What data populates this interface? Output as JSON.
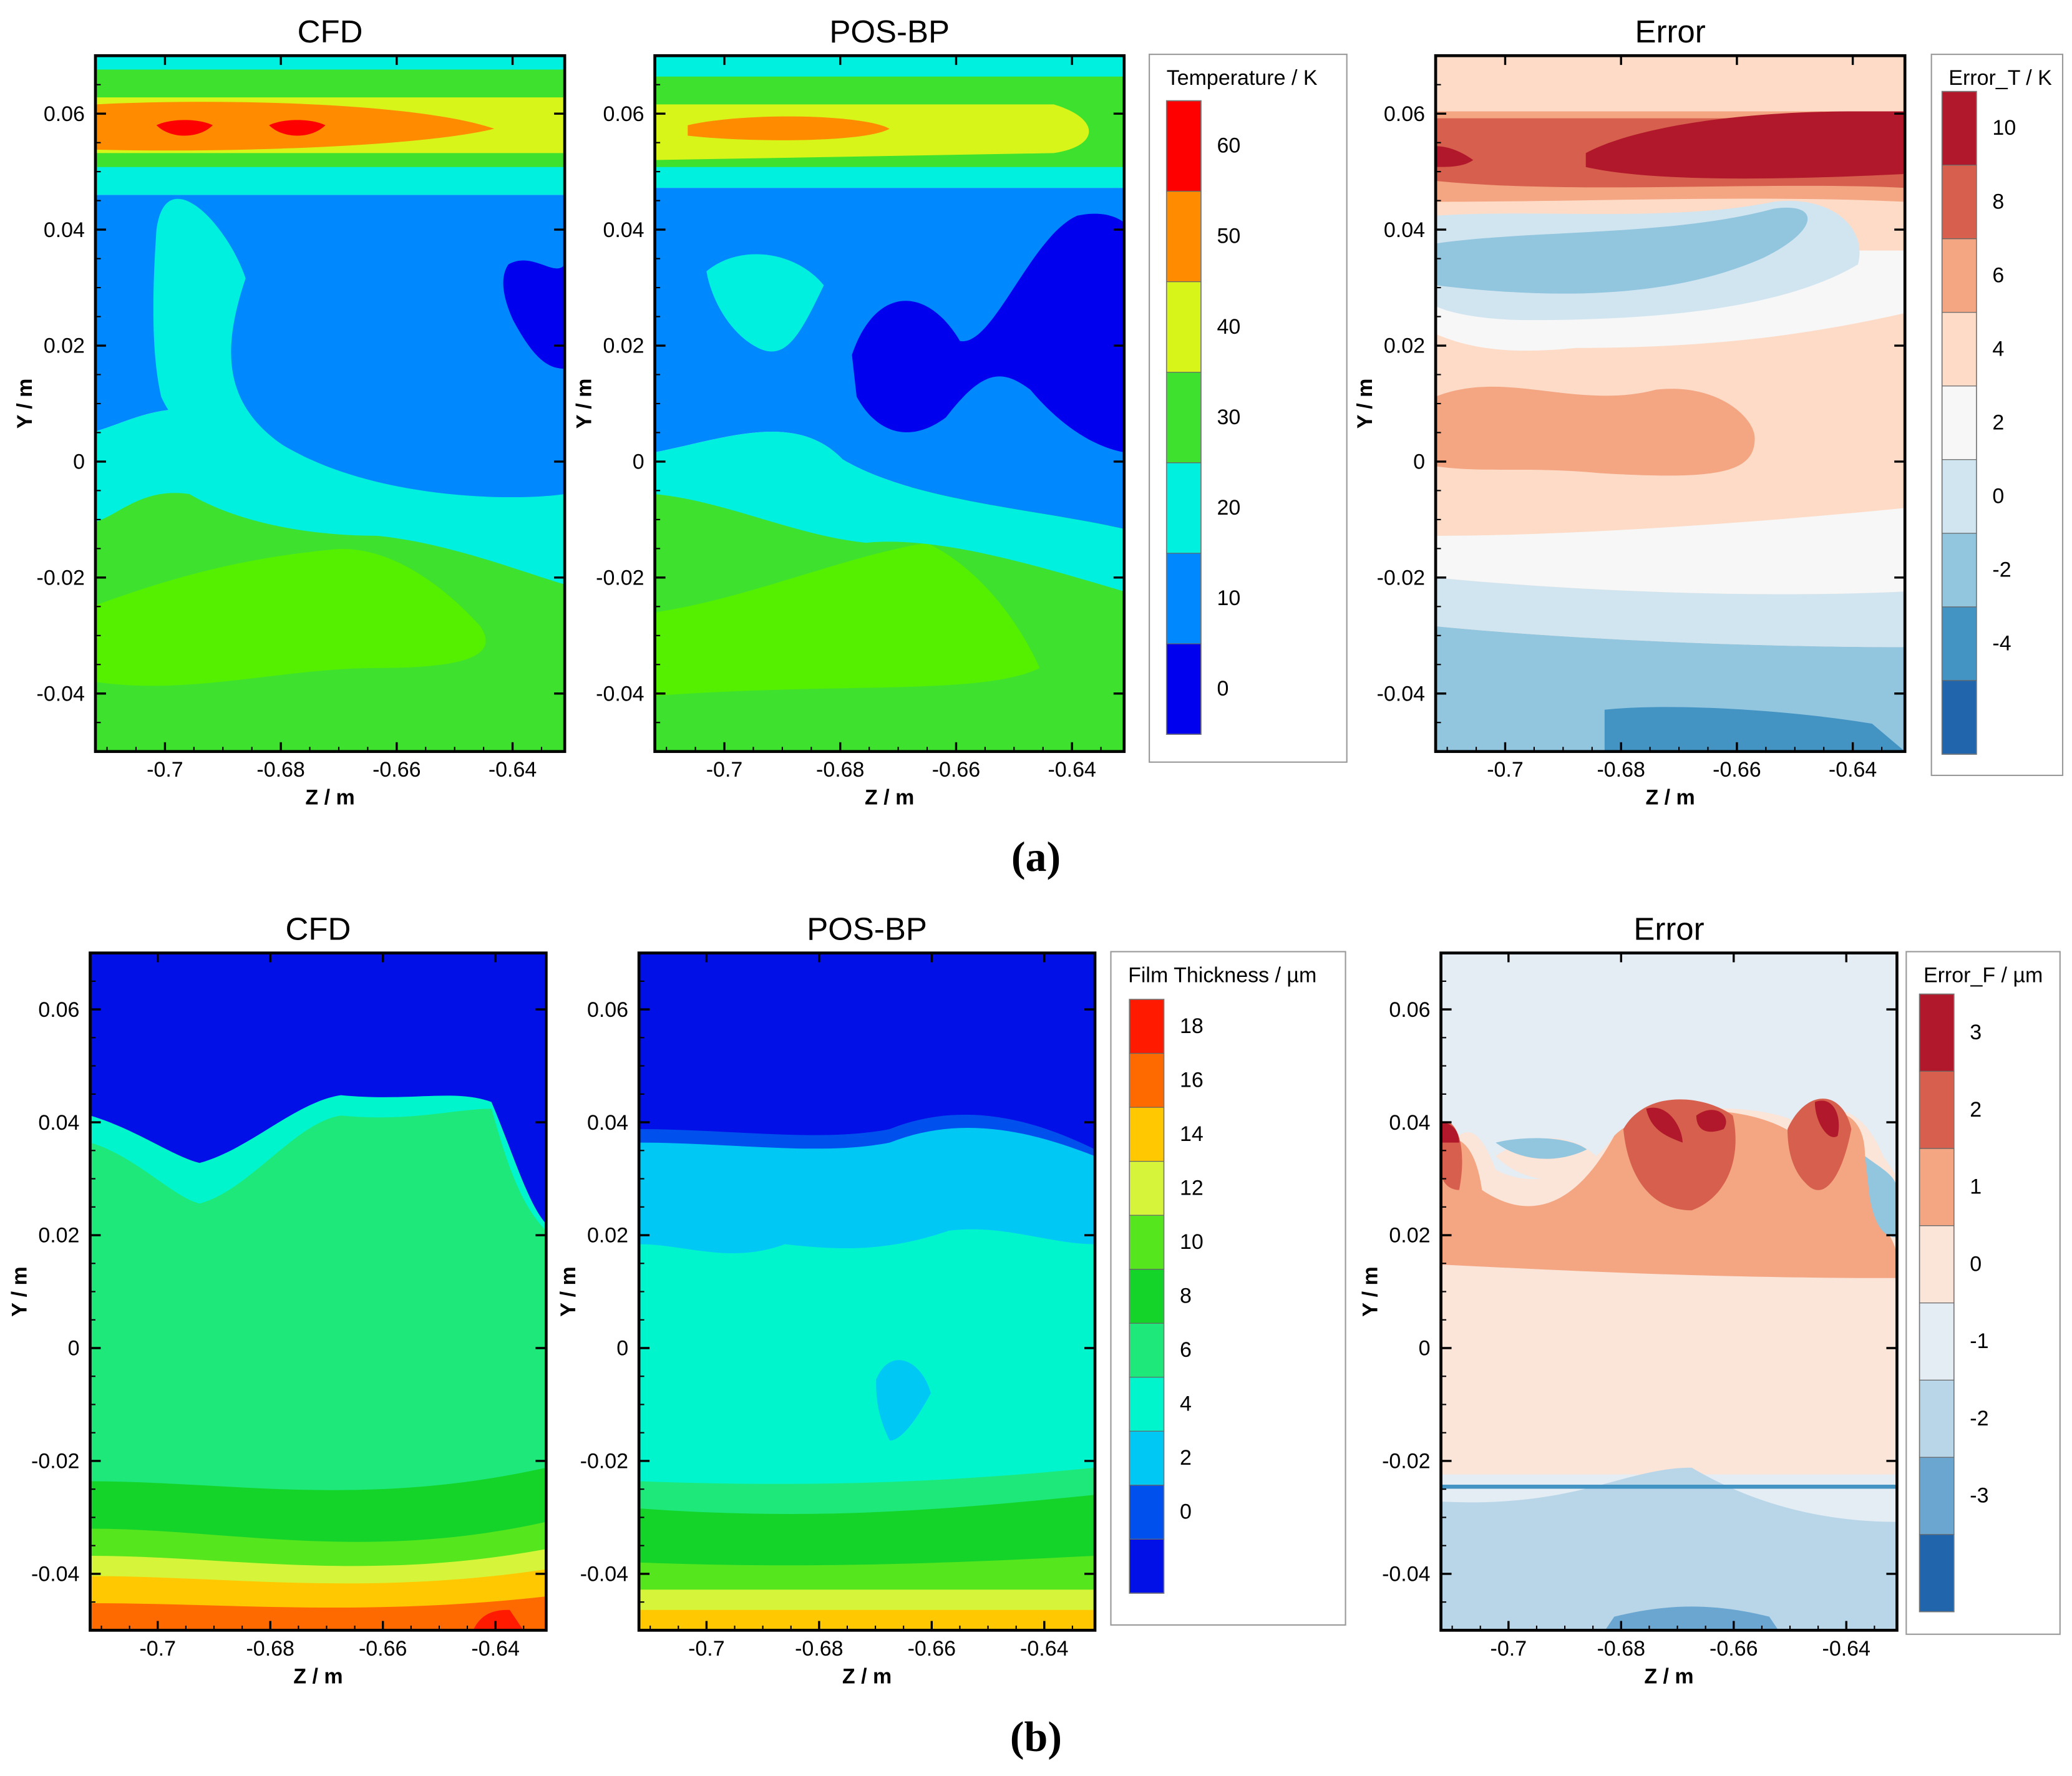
{
  "chart_data": [
    {
      "type": "heatmap",
      "title": "CFD",
      "xlabel": "Z / m",
      "ylabel": "Y / m",
      "xlim": [
        -0.712,
        -0.631
      ],
      "ylim": [
        -0.05,
        0.07
      ],
      "xticks": [
        "-0.7",
        "-0.68",
        "-0.66",
        "-0.64"
      ],
      "yticks": [
        "0.06",
        "0.04",
        "0.02",
        "0",
        "-0.02",
        "-0.04"
      ],
      "colorbar": "temperature"
    },
    {
      "type": "heatmap",
      "title": "POS-BP",
      "xlabel": "Z / m",
      "ylabel": "Y / m",
      "xlim": [
        -0.712,
        -0.631
      ],
      "ylim": [
        -0.05,
        0.07
      ],
      "xticks": [
        "-0.7",
        "-0.68",
        "-0.66",
        "-0.64"
      ],
      "yticks": [
        "0.06",
        "0.04",
        "0.02",
        "0",
        "-0.02",
        "-0.04"
      ],
      "colorbar": "temperature"
    },
    {
      "type": "heatmap",
      "title": "Error",
      "xlabel": "Z / m",
      "ylabel": "Y / m",
      "xlim": [
        -0.712,
        -0.631
      ],
      "ylim": [
        -0.05,
        0.07
      ],
      "xticks": [
        "-0.7",
        "-0.68",
        "-0.66",
        "-0.64"
      ],
      "yticks": [
        "0.06",
        "0.04",
        "0.02",
        "0",
        "-0.02",
        "-0.04"
      ],
      "colorbar": "temperature_error"
    },
    {
      "type": "heatmap",
      "title": "CFD",
      "xlabel": "Z / m",
      "ylabel": "Y / m",
      "xlim": [
        -0.712,
        -0.631
      ],
      "ylim": [
        -0.05,
        0.07
      ],
      "xticks": [
        "-0.7",
        "-0.68",
        "-0.66",
        "-0.64"
      ],
      "yticks": [
        "0.06",
        "0.04",
        "0.02",
        "0",
        "-0.02",
        "-0.04"
      ],
      "colorbar": "film"
    },
    {
      "type": "heatmap",
      "title": "POS-BP",
      "xlabel": "Z / m",
      "ylabel": "Y / m",
      "xlim": [
        -0.712,
        -0.631
      ],
      "ylim": [
        -0.05,
        0.07
      ],
      "xticks": [
        "-0.7",
        "-0.68",
        "-0.66",
        "-0.64"
      ],
      "yticks": [
        "0.06",
        "0.04",
        "0.02",
        "0",
        "-0.02",
        "-0.04"
      ],
      "colorbar": "film"
    },
    {
      "type": "heatmap",
      "title": "Error",
      "xlabel": "Z / m",
      "ylabel": "Y / m",
      "xlim": [
        -0.712,
        -0.631
      ],
      "ylim": [
        -0.05,
        0.07
      ],
      "xticks": [
        "-0.7",
        "-0.68",
        "-0.66",
        "-0.64"
      ],
      "yticks": [
        "0.06",
        "0.04",
        "0.02",
        "0",
        "-0.02",
        "-0.04"
      ],
      "colorbar": "film_error"
    }
  ],
  "colorbars": {
    "temperature": {
      "title": "Temperature / K",
      "levels": [
        "60",
        "50",
        "40",
        "30",
        "20",
        "10",
        "0"
      ],
      "colors": [
        "#ff0000",
        "#ff8c00",
        "#d8f51a",
        "#3ee22e",
        "#00f0e0",
        "#0088ff",
        "#0000ee"
      ]
    },
    "temperature_error": {
      "title": "Error_T / K",
      "levels": [
        "10",
        "8",
        "6",
        "4",
        "2",
        "0",
        "-2",
        "-4"
      ],
      "colors": [
        "#b2182b",
        "#d6604d",
        "#f4a582",
        "#fddbc7",
        "#f7f7f7",
        "#d1e5f0",
        "#92c5de",
        "#4393c3",
        "#2166ac"
      ]
    },
    "film": {
      "title": "Film Thickness / µm",
      "levels": [
        "18",
        "16",
        "14",
        "12",
        "10",
        "8",
        "6",
        "4",
        "2",
        "0"
      ],
      "colors": [
        "#ff1a00",
        "#ff6a00",
        "#ffc800",
        "#d6f53a",
        "#55e61e",
        "#14d42a",
        "#1ee87a",
        "#00f5cc",
        "#00c8f5",
        "#0050ee",
        "#0010e6"
      ]
    },
    "film_error": {
      "title": "Error_F / µm",
      "levels": [
        "3",
        "2",
        "1",
        "0",
        "-1",
        "-2",
        "-3"
      ],
      "colors": [
        "#b2182b",
        "#d6604d",
        "#f4a582",
        "#fbe4d8",
        "#e4ecf4",
        "#b8d6e8",
        "#6aa6d0",
        "#2166ac"
      ]
    }
  },
  "captions": {
    "a": "(a)",
    "b": "(b)"
  }
}
